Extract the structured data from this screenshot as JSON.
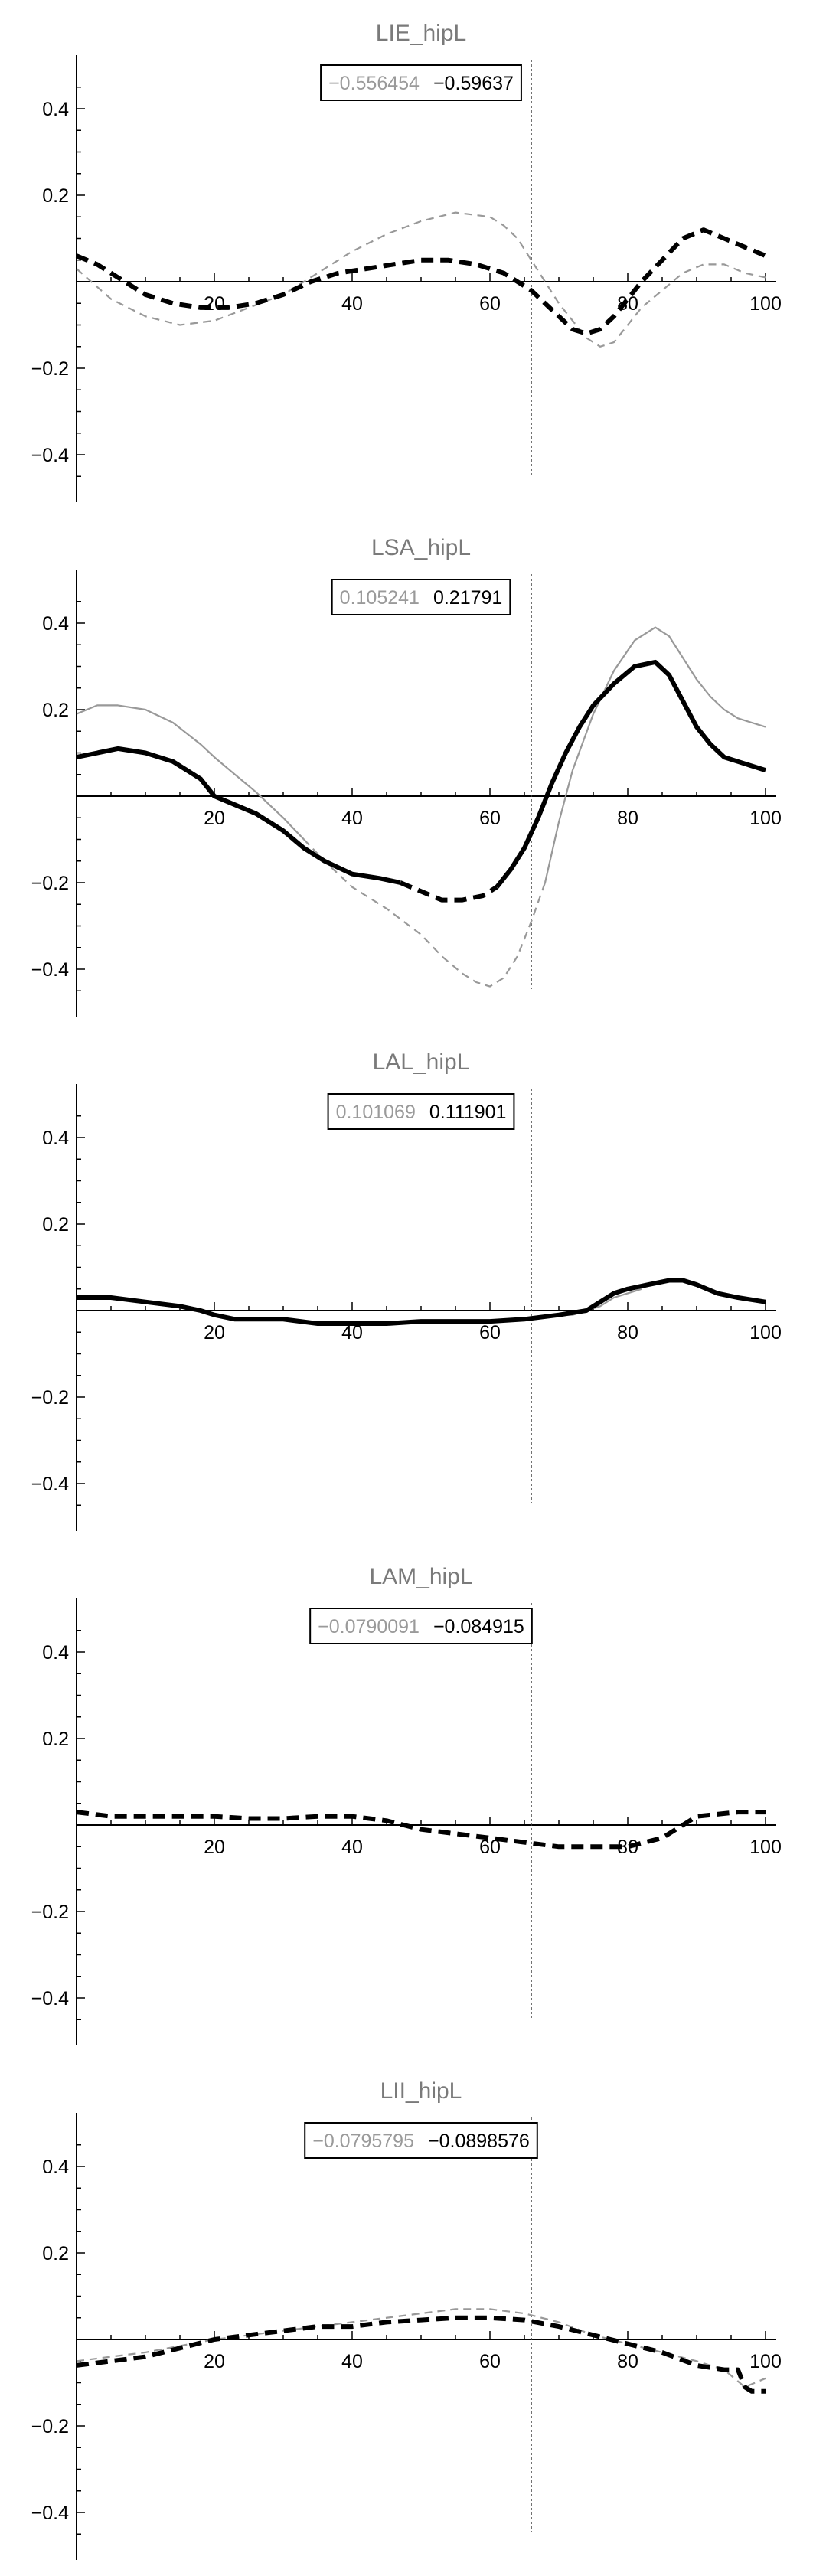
{
  "figure": {
    "style": {
      "axis_color": "#000000",
      "series_a_color": "#999999",
      "series_b_color": "#000000",
      "title_color": "#7a7a7a",
      "label_a_color": "#9a9a9a"
    }
  },
  "chart_data": [
    {
      "type": "line",
      "title": "LIE_hipL",
      "value_labels": [
        "−0.556454",
        "−0.59637"
      ],
      "xlim": [
        0,
        100
      ],
      "ylim": [
        -0.48,
        0.5
      ],
      "xticks": [
        20,
        40,
        60,
        80,
        100
      ],
      "yticks": [
        -0.4,
        -0.2,
        0.2,
        0.4
      ],
      "vline_x": 66,
      "series": [
        {
          "color": "#999999",
          "segments": [
            {
              "dash": "dashed",
              "x": [
                0,
                5,
                10,
                15,
                20,
                25,
                30,
                35,
                40,
                45,
                50,
                55,
                60,
                62,
                64,
                66,
                68,
                70,
                72,
                74,
                76,
                78,
                80,
                82,
                85,
                88,
                91,
                94,
                97,
                100
              ],
              "y": [
                0.03,
                -0.04,
                -0.08,
                -0.1,
                -0.09,
                -0.06,
                -0.03,
                0.02,
                0.07,
                0.11,
                0.14,
                0.16,
                0.15,
                0.13,
                0.1,
                0.05,
                0.0,
                -0.05,
                -0.09,
                -0.13,
                -0.15,
                -0.14,
                -0.1,
                -0.06,
                -0.02,
                0.02,
                0.04,
                0.04,
                0.02,
                0.01
              ]
            }
          ]
        },
        {
          "color": "#000000",
          "segments": [
            {
              "dash": "dashed",
              "x": [
                0,
                3,
                6,
                10,
                14,
                18,
                22,
                26,
                30,
                34,
                38,
                42,
                46,
                50,
                54,
                58,
                62,
                64,
                66,
                68,
                70,
                72,
                74,
                76,
                78,
                80,
                82,
                85,
                88,
                91,
                94,
                97,
                100
              ],
              "y": [
                0.06,
                0.04,
                0.01,
                -0.03,
                -0.05,
                -0.06,
                -0.06,
                -0.05,
                -0.03,
                0.0,
                0.02,
                0.03,
                0.04,
                0.05,
                0.05,
                0.04,
                0.02,
                0.0,
                -0.02,
                -0.05,
                -0.08,
                -0.11,
                -0.12,
                -0.11,
                -0.08,
                -0.04,
                0.0,
                0.05,
                0.1,
                0.12,
                0.1,
                0.08,
                0.06
              ]
            }
          ]
        }
      ]
    },
    {
      "type": "line",
      "title": "LSA_hipL",
      "value_labels": [
        "0.105241",
        "0.21791"
      ],
      "xlim": [
        0,
        100
      ],
      "ylim": [
        -0.48,
        0.5
      ],
      "xticks": [
        20,
        40,
        60,
        80,
        100
      ],
      "yticks": [
        -0.4,
        -0.2,
        0.2,
        0.4
      ],
      "vline_x": 66,
      "series": [
        {
          "color": "#999999",
          "segments": [
            {
              "dash": "solid",
              "x": [
                0,
                3,
                6,
                10,
                14,
                18,
                20,
                23,
                26,
                30,
                33
              ],
              "y": [
                0.19,
                0.21,
                0.21,
                0.2,
                0.17,
                0.12,
                0.09,
                0.05,
                0.01,
                -0.05,
                -0.1
              ]
            },
            {
              "dash": "dashed",
              "x": [
                33,
                36,
                40,
                45,
                50,
                53,
                56,
                58,
                60,
                62,
                64,
                66,
                68
              ],
              "y": [
                -0.1,
                -0.15,
                -0.21,
                -0.26,
                -0.32,
                -0.37,
                -0.41,
                -0.43,
                -0.44,
                -0.42,
                -0.37,
                -0.29,
                -0.2
              ]
            },
            {
              "dash": "solid",
              "x": [
                68,
                70,
                72,
                75,
                78,
                81,
                84,
                86,
                88,
                90,
                92,
                94,
                96,
                98,
                100
              ],
              "y": [
                -0.2,
                -0.06,
                0.06,
                0.19,
                0.29,
                0.36,
                0.39,
                0.37,
                0.32,
                0.27,
                0.23,
                0.2,
                0.18,
                0.17,
                0.16
              ]
            }
          ]
        },
        {
          "color": "#000000",
          "segments": [
            {
              "dash": "solid",
              "x": [
                0,
                3,
                6,
                10,
                14,
                16,
                18,
                20,
                23,
                26,
                30,
                33,
                36,
                40,
                44,
                47
              ],
              "y": [
                0.09,
                0.1,
                0.11,
                0.1,
                0.08,
                0.06,
                0.04,
                0.0,
                -0.02,
                -0.04,
                -0.08,
                -0.12,
                -0.15,
                -0.18,
                -0.19,
                -0.2
              ]
            },
            {
              "dash": "dashed",
              "x": [
                47,
                50,
                53,
                56,
                59,
                61
              ],
              "y": [
                -0.2,
                -0.22,
                -0.24,
                -0.24,
                -0.23,
                -0.21
              ]
            },
            {
              "dash": "solid",
              "x": [
                61,
                63,
                65,
                67,
                69,
                71,
                73,
                75,
                78,
                81,
                84,
                86,
                88,
                90,
                92,
                94,
                96,
                98,
                100
              ],
              "y": [
                -0.21,
                -0.17,
                -0.12,
                -0.05,
                0.03,
                0.1,
                0.16,
                0.21,
                0.26,
                0.3,
                0.31,
                0.28,
                0.22,
                0.16,
                0.12,
                0.09,
                0.08,
                0.07,
                0.06
              ]
            }
          ]
        }
      ]
    },
    {
      "type": "line",
      "title": "LAL_hipL",
      "value_labels": [
        "0.101069",
        "0.111901"
      ],
      "xlim": [
        0,
        100
      ],
      "ylim": [
        -0.48,
        0.5
      ],
      "xticks": [
        20,
        40,
        60,
        80,
        100
      ],
      "yticks": [
        -0.4,
        -0.2,
        0.2,
        0.4
      ],
      "vline_x": 66,
      "series": [
        {
          "color": "#999999",
          "segments": [
            {
              "dash": "solid",
              "x": [
                70,
                72,
                74,
                76,
                78,
                80,
                82
              ],
              "y": [
                -0.01,
                -0.01,
                0.0,
                0.01,
                0.03,
                0.04,
                0.05
              ]
            }
          ]
        },
        {
          "color": "#000000",
          "segments": [
            {
              "dash": "solid",
              "x": [
                0,
                5,
                10,
                15,
                18,
                20,
                23,
                26,
                30,
                35,
                40,
                45,
                50,
                55,
                60,
                65,
                70,
                74,
                76,
                78,
                80,
                83,
                86,
                88,
                90,
                93,
                96,
                100
              ],
              "y": [
                0.03,
                0.03,
                0.02,
                0.01,
                0.0,
                -0.01,
                -0.02,
                -0.02,
                -0.02,
                -0.03,
                -0.03,
                -0.03,
                -0.025,
                -0.025,
                -0.025,
                -0.02,
                -0.01,
                0.0,
                0.02,
                0.04,
                0.05,
                0.06,
                0.07,
                0.07,
                0.06,
                0.04,
                0.03,
                0.02
              ]
            }
          ]
        }
      ]
    },
    {
      "type": "line",
      "title": "LAM_hipL",
      "value_labels": [
        "−0.0790091",
        "−0.084915"
      ],
      "xlim": [
        0,
        100
      ],
      "ylim": [
        -0.48,
        0.5
      ],
      "xticks": [
        20,
        40,
        60,
        80,
        100
      ],
      "yticks": [
        -0.4,
        -0.2,
        0.2,
        0.4
      ],
      "vline_x": 66,
      "series": [
        {
          "color": "#999999",
          "segments": []
        },
        {
          "color": "#000000",
          "segments": [
            {
              "dash": "dashed",
              "x": [
                0,
                5,
                10,
                15,
                20,
                25,
                30,
                35,
                40,
                45,
                50,
                55,
                60,
                65,
                70,
                75,
                80,
                85,
                88,
                90,
                93,
                96,
                100
              ],
              "y": [
                0.03,
                0.02,
                0.02,
                0.02,
                0.02,
                0.015,
                0.015,
                0.02,
                0.02,
                0.01,
                -0.01,
                -0.02,
                -0.03,
                -0.04,
                -0.05,
                -0.05,
                -0.05,
                -0.03,
                0.0,
                0.02,
                0.025,
                0.03,
                0.03
              ]
            }
          ]
        }
      ]
    },
    {
      "type": "line",
      "title": "LII_hipL",
      "value_labels": [
        "−0.0795795",
        "−0.0898576"
      ],
      "xlim": [
        0,
        100
      ],
      "ylim": [
        -0.48,
        0.5
      ],
      "xticks": [
        20,
        40,
        60,
        80,
        100
      ],
      "yticks": [
        -0.4,
        -0.2,
        0.2,
        0.4
      ],
      "vline_x": 66,
      "series": [
        {
          "color": "#999999",
          "segments": [
            {
              "dash": "dashed",
              "x": [
                0,
                10,
                20,
                30,
                40,
                50,
                55,
                60,
                65,
                70,
                75,
                80,
                85,
                90,
                94,
                97,
                100
              ],
              "y": [
                -0.05,
                -0.03,
                0.0,
                0.02,
                0.04,
                0.06,
                0.07,
                0.07,
                0.06,
                0.04,
                0.01,
                -0.01,
                -0.03,
                -0.05,
                -0.07,
                -0.11,
                -0.09
              ]
            }
          ]
        },
        {
          "color": "#000000",
          "segments": [
            {
              "dash": "dashed",
              "x": [
                0,
                5,
                10,
                15,
                20,
                25,
                30,
                35,
                40,
                45,
                50,
                55,
                60,
                65,
                70,
                75,
                80,
                85,
                90,
                94,
                96,
                97,
                98,
                100
              ],
              "y": [
                -0.06,
                -0.05,
                -0.04,
                -0.02,
                0.0,
                0.01,
                0.02,
                0.03,
                0.03,
                0.04,
                0.045,
                0.05,
                0.05,
                0.045,
                0.03,
                0.01,
                -0.01,
                -0.03,
                -0.06,
                -0.07,
                -0.07,
                -0.11,
                -0.12,
                -0.12
              ]
            }
          ]
        }
      ]
    }
  ]
}
